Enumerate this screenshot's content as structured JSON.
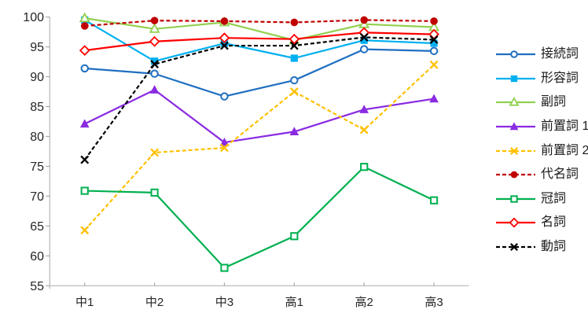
{
  "chart_data": {
    "type": "line",
    "title": "",
    "xlabel": "",
    "ylabel": "",
    "categories": [
      "中1",
      "中2",
      "中3",
      "高1",
      "高2",
      "高3"
    ],
    "series": [
      {
        "id": "conjunction",
        "name": "接続詞",
        "color": "#1F6FC0",
        "marker": "open-circle",
        "line_style": "solid",
        "values": [
          91.4,
          90.5,
          86.7,
          89.4,
          94.6,
          94.3
        ]
      },
      {
        "id": "adjective",
        "name": "形容詞",
        "color": "#00B0F0",
        "marker": "filled-square",
        "line_style": "solid",
        "values": [
          99.5,
          92.6,
          95.6,
          93.1,
          96.1,
          95.6
        ]
      },
      {
        "id": "adverb",
        "name": "副詞",
        "color": "#92D050",
        "marker": "open-triangle",
        "line_style": "solid",
        "values": [
          99.8,
          98.0,
          99.1,
          96.1,
          98.8,
          98.3
        ]
      },
      {
        "id": "preposition-1",
        "name": "前置詞 1",
        "color": "#8A2BE2",
        "marker": "filled-triangle",
        "line_style": "solid",
        "values": [
          82.1,
          87.8,
          79.0,
          80.8,
          84.5,
          86.3
        ]
      },
      {
        "id": "preposition-2",
        "name": "前置詞 2",
        "color": "#FFC000",
        "marker": "x-cross",
        "line_style": "dashed",
        "values": [
          64.3,
          77.3,
          78.1,
          87.5,
          81.1,
          92.0
        ]
      },
      {
        "id": "pronoun",
        "name": "代名詞",
        "color": "#C00000",
        "marker": "filled-circle",
        "line_style": "dashed",
        "values": [
          98.5,
          99.4,
          99.3,
          99.1,
          99.5,
          99.3
        ]
      },
      {
        "id": "article",
        "name": "冠詞",
        "color": "#00B050",
        "marker": "open-square",
        "line_style": "solid",
        "values": [
          70.9,
          70.6,
          58.0,
          63.3,
          74.9,
          69.3
        ]
      },
      {
        "id": "noun",
        "name": "名詞",
        "color": "#FF0000",
        "marker": "open-diamond",
        "line_style": "solid",
        "values": [
          94.4,
          95.9,
          96.5,
          96.3,
          97.4,
          97.1
        ]
      },
      {
        "id": "verb",
        "name": "動詞",
        "color": "#000000",
        "marker": "x-cross",
        "line_style": "dashed",
        "values": [
          76.1,
          92.1,
          95.2,
          95.2,
          96.6,
          96.2
        ]
      }
    ],
    "ylim": [
      55,
      100
    ],
    "yticks": [
      55,
      60,
      65,
      70,
      75,
      80,
      85,
      90,
      95,
      100
    ],
    "grid": false,
    "legend_position": "right",
    "colors": {
      "axis_line": "#C0C0C0",
      "tick_mark": "#A9A9A9",
      "tick_label": "#262626",
      "background": "#FFFFFF"
    }
  }
}
